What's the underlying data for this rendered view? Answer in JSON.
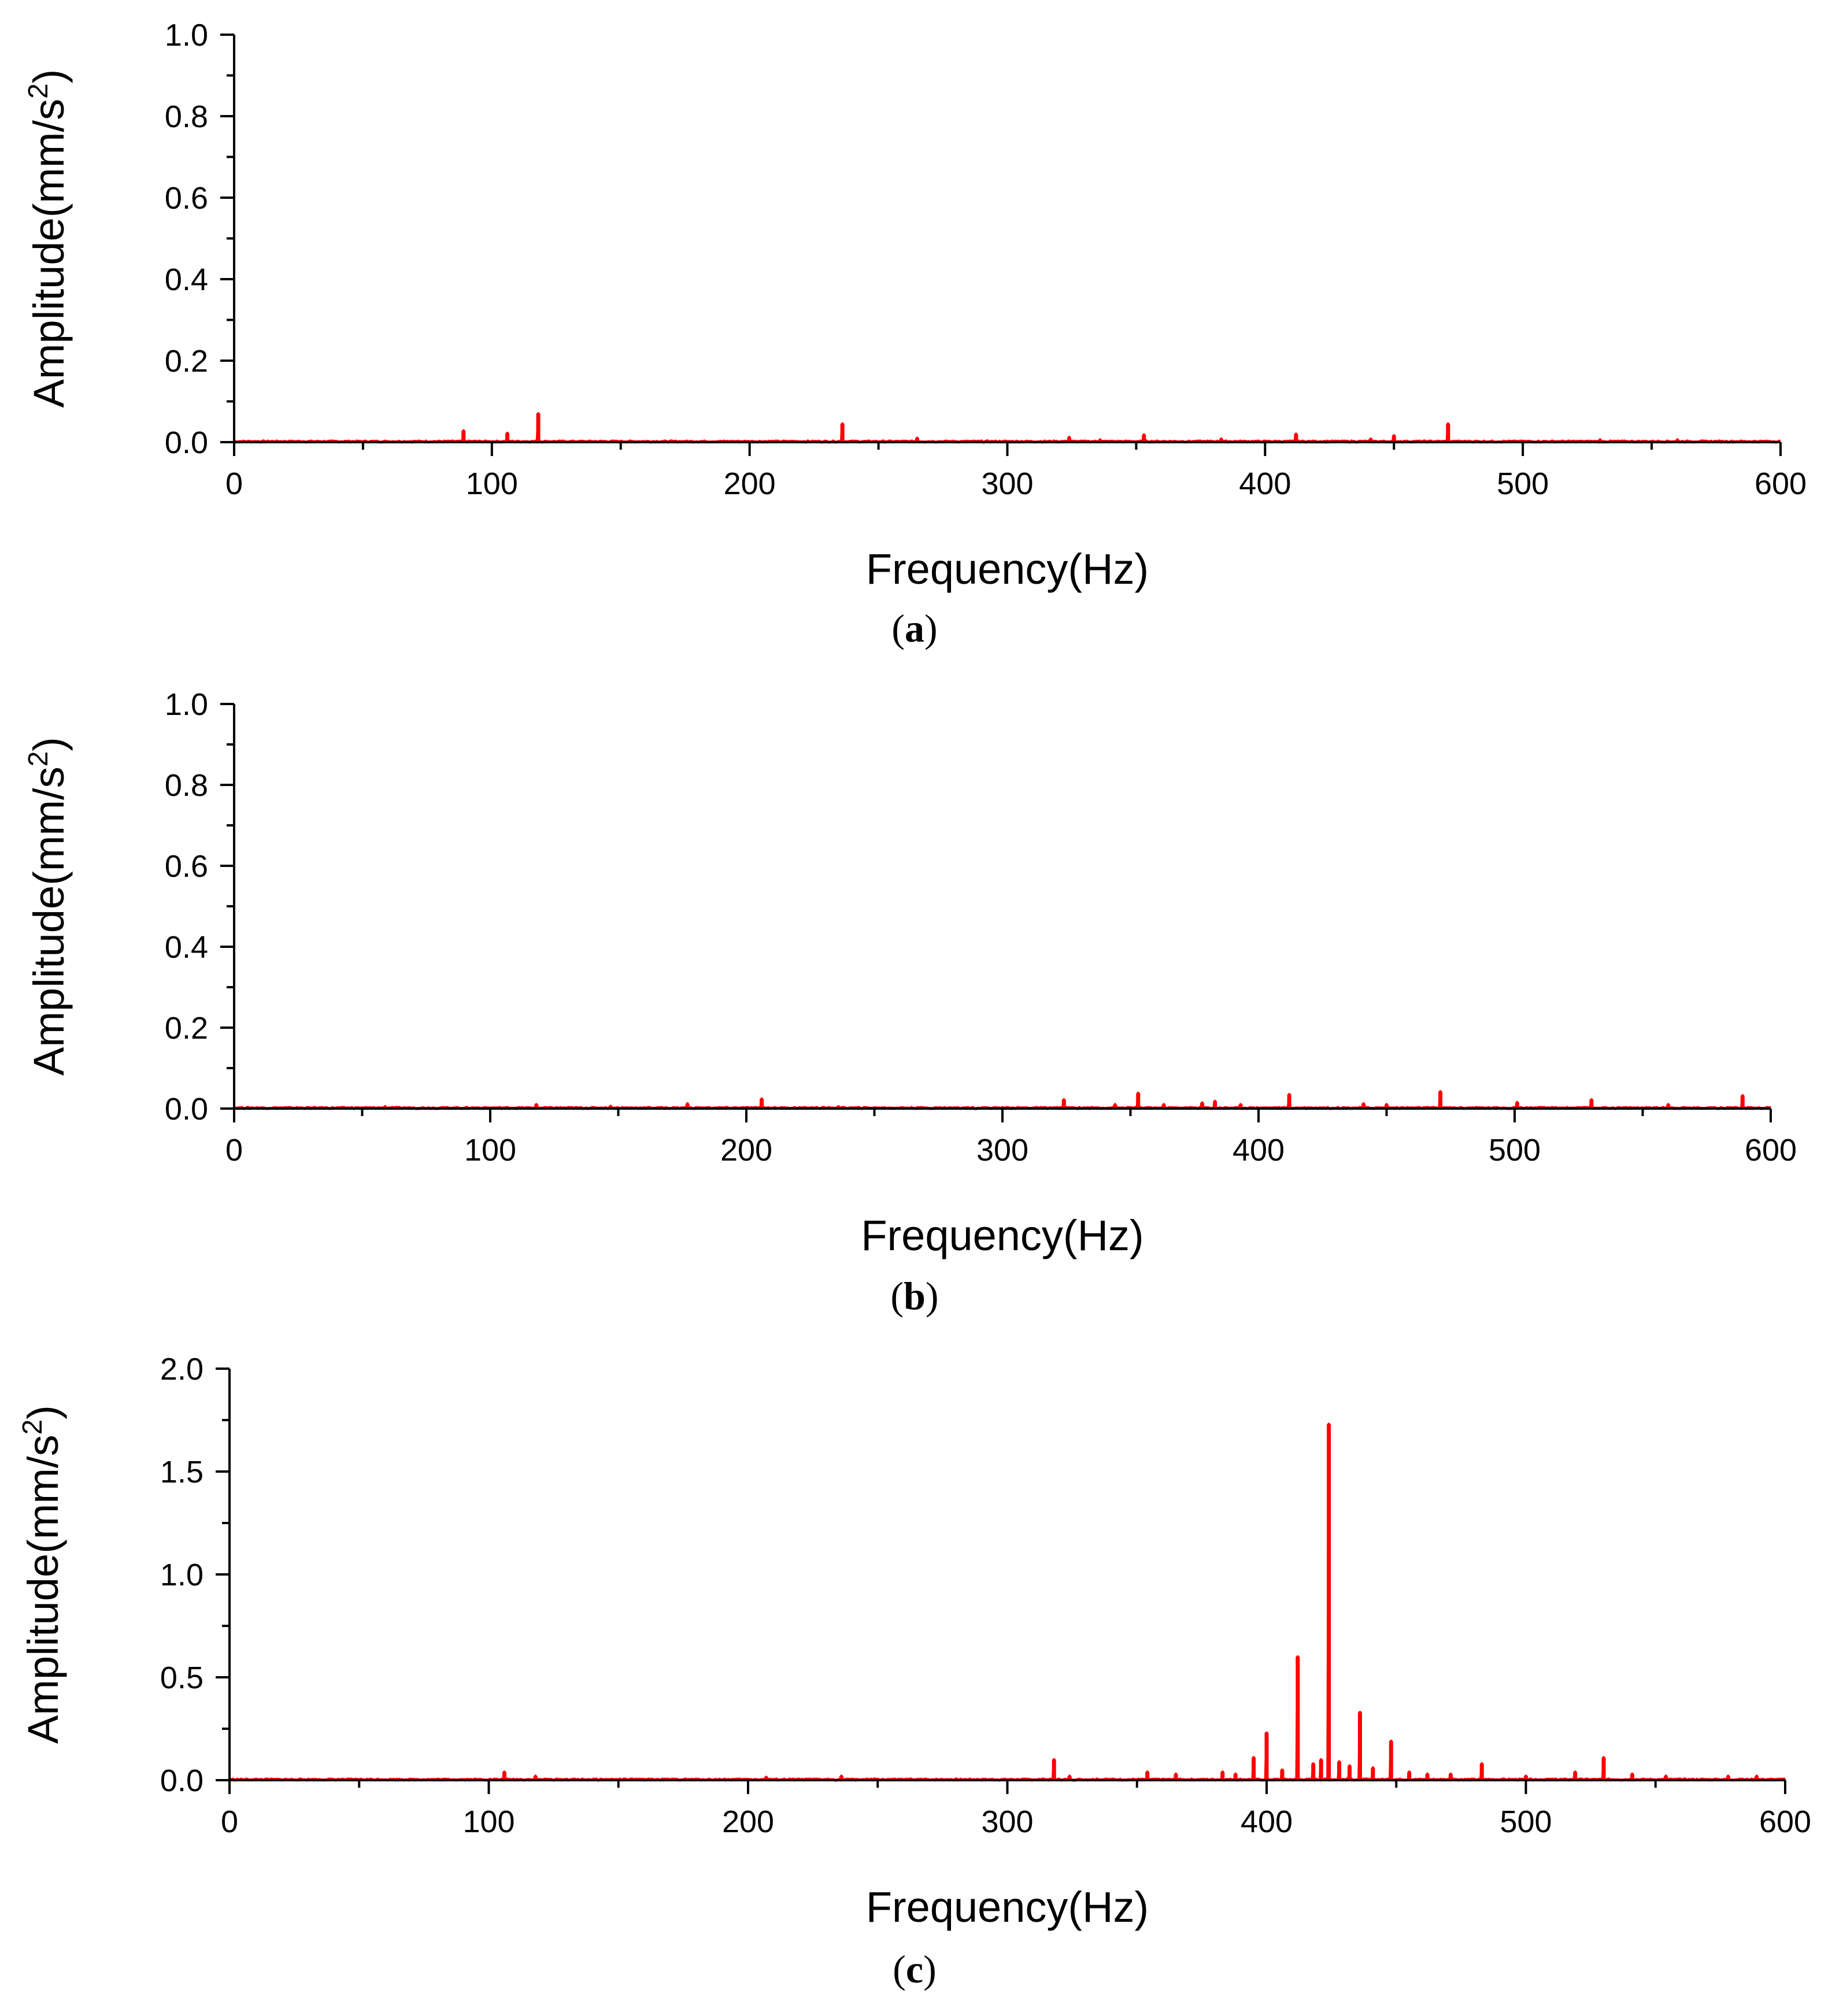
{
  "chart_data": [
    {
      "type": "line",
      "panel_label": "a",
      "xlabel": "Frequency(Hz)",
      "ylabel_main": "Amplitude(mm/s",
      "ylabel_sup": "2",
      "ylabel_end": ")",
      "xlim": [
        0,
        600
      ],
      "ylim": [
        0,
        1.0
      ],
      "x_ticks": [
        0,
        100,
        200,
        300,
        400,
        500,
        600
      ],
      "x_tick_labels": [
        "0",
        "100",
        "200",
        "300",
        "400",
        "500",
        "600"
      ],
      "y_ticks": [
        0.0,
        0.2,
        0.4,
        0.6,
        0.8,
        1.0
      ],
      "y_tick_labels": [
        "0.0",
        "0.2",
        "0.4",
        "0.6",
        "0.8",
        "1.0"
      ],
      "color": "#ff0000",
      "peaks": [
        {
          "x": 89,
          "y": 0.028
        },
        {
          "x": 106,
          "y": 0.022
        },
        {
          "x": 118,
          "y": 0.07
        },
        {
          "x": 236,
          "y": 0.045
        },
        {
          "x": 265,
          "y": 0.01
        },
        {
          "x": 324,
          "y": 0.012
        },
        {
          "x": 336,
          "y": 0.006
        },
        {
          "x": 353,
          "y": 0.018
        },
        {
          "x": 383,
          "y": 0.008
        },
        {
          "x": 412,
          "y": 0.02
        },
        {
          "x": 441,
          "y": 0.008
        },
        {
          "x": 450,
          "y": 0.016
        },
        {
          "x": 471,
          "y": 0.045
        },
        {
          "x": 530,
          "y": 0.006
        },
        {
          "x": 560,
          "y": 0.006
        }
      ]
    },
    {
      "type": "line",
      "panel_label": "b",
      "xlabel": "Frequency(Hz)",
      "ylabel_main": "Amplitude(mm/s",
      "ylabel_sup": "2",
      "ylabel_end": ")",
      "xlim": [
        0,
        600
      ],
      "ylim": [
        0,
        1.0
      ],
      "x_ticks": [
        0,
        100,
        200,
        300,
        400,
        500,
        600
      ],
      "x_tick_labels": [
        "0",
        "100",
        "200",
        "300",
        "400",
        "500",
        "600"
      ],
      "y_ticks": [
        0.0,
        0.2,
        0.4,
        0.6,
        0.8,
        1.0
      ],
      "y_tick_labels": [
        "0.0",
        "0.2",
        "0.4",
        "0.6",
        "0.8",
        "1.0"
      ],
      "color": "#ff0000",
      "peaks": [
        {
          "x": 59,
          "y": 0.005
        },
        {
          "x": 118,
          "y": 0.01
        },
        {
          "x": 147,
          "y": 0.006
        },
        {
          "x": 177,
          "y": 0.012
        },
        {
          "x": 206,
          "y": 0.024
        },
        {
          "x": 236,
          "y": 0.005
        },
        {
          "x": 324,
          "y": 0.022
        },
        {
          "x": 344,
          "y": 0.01
        },
        {
          "x": 353,
          "y": 0.038
        },
        {
          "x": 363,
          "y": 0.01
        },
        {
          "x": 378,
          "y": 0.014
        },
        {
          "x": 383,
          "y": 0.018
        },
        {
          "x": 393,
          "y": 0.01
        },
        {
          "x": 412,
          "y": 0.035
        },
        {
          "x": 441,
          "y": 0.012
        },
        {
          "x": 450,
          "y": 0.01
        },
        {
          "x": 471,
          "y": 0.042
        },
        {
          "x": 501,
          "y": 0.015
        },
        {
          "x": 530,
          "y": 0.022
        },
        {
          "x": 560,
          "y": 0.01
        },
        {
          "x": 589,
          "y": 0.032
        }
      ]
    },
    {
      "type": "line",
      "panel_label": "c",
      "xlabel": "Frequency(Hz)",
      "ylabel_main": "Amplitude(mm/s",
      "ylabel_sup": "2",
      "ylabel_end": ")",
      "xlim": [
        0,
        600
      ],
      "ylim": [
        0,
        2.0
      ],
      "x_ticks": [
        0,
        100,
        200,
        300,
        400,
        500,
        600
      ],
      "x_tick_labels": [
        "0",
        "100",
        "200",
        "300",
        "400",
        "500",
        "600"
      ],
      "y_ticks": [
        0.0,
        0.5,
        1.0,
        1.5,
        2.0
      ],
      "y_tick_labels": [
        "0.0",
        "0.5",
        "1.0",
        "1.5",
        "2.0"
      ],
      "color": "#ff0000",
      "peaks": [
        {
          "x": 106,
          "y": 0.04
        },
        {
          "x": 118,
          "y": 0.02
        },
        {
          "x": 207,
          "y": 0.015
        },
        {
          "x": 236,
          "y": 0.02
        },
        {
          "x": 318,
          "y": 0.1
        },
        {
          "x": 324,
          "y": 0.02
        },
        {
          "x": 354,
          "y": 0.04
        },
        {
          "x": 365,
          "y": 0.03
        },
        {
          "x": 383,
          "y": 0.04
        },
        {
          "x": 388,
          "y": 0.03
        },
        {
          "x": 395,
          "y": 0.11
        },
        {
          "x": 400,
          "y": 0.23
        },
        {
          "x": 406,
          "y": 0.05
        },
        {
          "x": 412,
          "y": 0.6
        },
        {
          "x": 418,
          "y": 0.08
        },
        {
          "x": 421,
          "y": 0.1
        },
        {
          "x": 424,
          "y": 1.73
        },
        {
          "x": 428,
          "y": 0.09
        },
        {
          "x": 432,
          "y": 0.07
        },
        {
          "x": 436,
          "y": 0.33
        },
        {
          "x": 441,
          "y": 0.06
        },
        {
          "x": 448,
          "y": 0.19
        },
        {
          "x": 455,
          "y": 0.04
        },
        {
          "x": 462,
          "y": 0.03
        },
        {
          "x": 471,
          "y": 0.03
        },
        {
          "x": 483,
          "y": 0.08
        },
        {
          "x": 500,
          "y": 0.02
        },
        {
          "x": 519,
          "y": 0.04
        },
        {
          "x": 530,
          "y": 0.11
        },
        {
          "x": 541,
          "y": 0.03
        },
        {
          "x": 554,
          "y": 0.02
        },
        {
          "x": 578,
          "y": 0.02
        },
        {
          "x": 589,
          "y": 0.02
        }
      ]
    }
  ]
}
